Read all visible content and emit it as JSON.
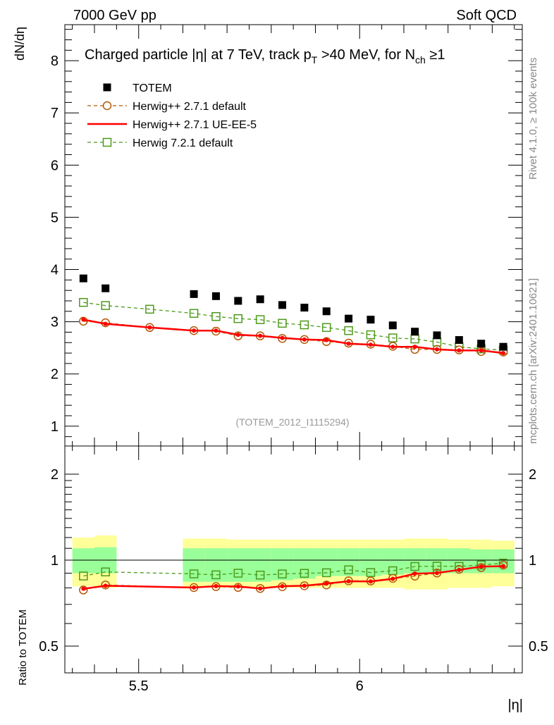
{
  "header": {
    "left": "7000 GeV pp",
    "right": "Soft QCD"
  },
  "side_labels": {
    "rivet": "Rivet 4.1.0, ≥ 100k events",
    "mcplots": "mcplots.cern.ch [arXiv:2401.10621]"
  },
  "chart_data": {
    "type": "scatter",
    "title": "Charged particle |η| at 7 TeV, track p_T >40 MeV, for N_ch ≥1",
    "title_parts": {
      "a": "Charged particle |η| at 7 TeV, track p",
      "sub1": "T",
      "b": " >40 MeV, for N",
      "sub2": "ch",
      "c": " ≥1"
    },
    "analysis_id": "(TOTEM_2012_I1115294)",
    "xlabel": "|η|",
    "ylabel": "dN/dη",
    "ratio_ylabel": "Ratio to TOTEM",
    "xlim": [
      5.333,
      6.368
    ],
    "ylim": [
      0.62,
      8.69
    ],
    "ratio_ylim": [
      0.403,
      2.51
    ],
    "ratio_scale": "log",
    "x_ticks": [
      "5.5",
      "6"
    ],
    "y_ticks": [
      "1",
      "2",
      "3",
      "4",
      "5",
      "6",
      "7",
      "8"
    ],
    "ratio_ticks": [
      "0.5",
      "1",
      "2"
    ],
    "legend_position": "top-left",
    "data_x": [
      5.375,
      5.425,
      5.625,
      5.675,
      5.725,
      5.775,
      5.825,
      5.875,
      5.925,
      5.975,
      6.025,
      6.075,
      6.125,
      6.175,
      6.225,
      6.275,
      6.325
    ],
    "data_y": [
      3.83,
      3.64,
      3.53,
      3.49,
      3.4,
      3.43,
      3.32,
      3.27,
      3.2,
      3.06,
      3.04,
      2.93,
      2.81,
      2.74,
      2.65,
      2.58,
      2.52
    ],
    "band_yellow": [
      [
        0.81,
        1.2
      ],
      [
        0.8,
        1.22
      ],
      [
        0.8,
        1.19
      ],
      [
        0.8,
        1.19
      ],
      [
        0.8,
        1.18
      ],
      [
        0.8,
        1.18
      ],
      [
        0.8,
        1.18
      ],
      [
        0.8,
        1.18
      ],
      [
        0.8,
        1.18
      ],
      [
        0.8,
        1.18
      ],
      [
        0.8,
        1.18
      ],
      [
        0.8,
        1.18
      ],
      [
        0.79,
        1.19
      ],
      [
        0.79,
        1.19
      ],
      [
        0.8,
        1.18
      ],
      [
        0.8,
        1.18
      ],
      [
        0.81,
        1.17
      ]
    ],
    "band_green": [
      [
        0.9,
        1.1
      ],
      [
        0.9,
        1.11
      ],
      [
        0.84,
        1.1
      ],
      [
        0.84,
        1.1
      ],
      [
        0.84,
        1.1
      ],
      [
        0.84,
        1.1
      ],
      [
        0.85,
        1.1
      ],
      [
        0.86,
        1.1
      ],
      [
        0.88,
        1.1
      ],
      [
        0.88,
        1.1
      ],
      [
        0.88,
        1.1
      ],
      [
        0.89,
        1.1
      ],
      [
        0.9,
        1.1
      ],
      [
        0.9,
        1.1
      ],
      [
        0.9,
        1.1
      ],
      [
        0.9,
        1.09
      ],
      [
        0.9,
        1.09
      ]
    ],
    "mc_x": [
      5.375,
      5.425,
      5.525,
      5.625,
      5.675,
      5.725,
      5.775,
      5.825,
      5.875,
      5.925,
      5.975,
      6.025,
      6.075,
      6.125,
      6.175,
      6.225,
      6.275,
      6.325
    ],
    "series": [
      {
        "name": "TOTEM",
        "color": "#000000",
        "marker": "square-filled"
      },
      {
        "name": "Herwig++ 2.7.1 default",
        "color": "#b35806",
        "marker": "circle-open",
        "line": "dashed",
        "values": [
          3.01,
          2.98,
          2.89,
          2.83,
          2.82,
          2.73,
          2.73,
          2.68,
          2.66,
          2.62,
          2.59,
          2.57,
          2.53,
          2.47,
          2.47,
          2.46,
          2.43,
          2.42
        ]
      },
      {
        "name": "Herwig++ 2.7.1 UE-EE-5",
        "color": "#ff0000",
        "marker": "dot",
        "line": "solid",
        "values": [
          3.04,
          2.96,
          2.89,
          2.83,
          2.83,
          2.75,
          2.73,
          2.69,
          2.66,
          2.65,
          2.58,
          2.56,
          2.52,
          2.52,
          2.47,
          2.45,
          2.45,
          2.4
        ]
      },
      {
        "name": "Herwig 7.2.1 default",
        "color": "#4d9a1a",
        "marker": "square-open",
        "line": "dashed",
        "values": [
          3.37,
          3.31,
          3.24,
          3.16,
          3.1,
          3.06,
          3.04,
          2.97,
          2.94,
          2.89,
          2.83,
          2.75,
          2.69,
          2.67,
          2.61,
          2.52,
          2.48,
          2.46
        ]
      }
    ],
    "band_colors": {
      "yellow": "#ffff99",
      "green": "#99ff99"
    }
  }
}
